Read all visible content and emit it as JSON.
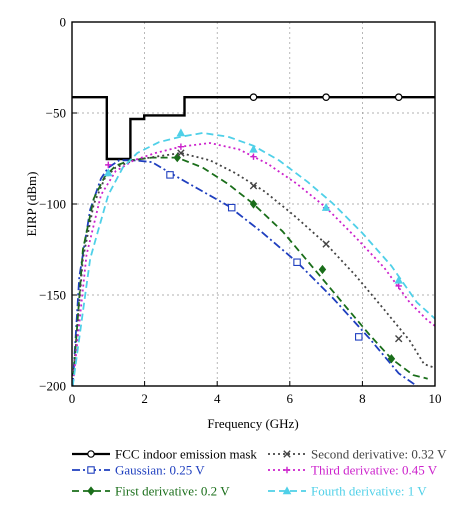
{
  "chart_data": {
    "type": "line",
    "xlabel": "Frequency (GHz)",
    "ylabel": "EIRP (dBm)",
    "xlim": [
      0,
      10
    ],
    "ylim": [
      -200,
      0
    ],
    "xticks": [
      0,
      2,
      4,
      6,
      8,
      10
    ],
    "yticks": [
      0,
      -50,
      -100,
      -150,
      -200
    ],
    "xtick_labels": [
      "0",
      "2",
      "4",
      "6",
      "8",
      "10"
    ],
    "ytick_labels": [
      "0",
      "−50",
      "−100",
      "−150",
      "−200"
    ],
    "grid": true,
    "legend_position": "below-plot",
    "series": [
      {
        "name": "FCC indoor emission mask",
        "color": "#000000",
        "dash": "solid",
        "marker": "circle",
        "x": [
          0,
          0.96,
          0.96,
          1.61,
          1.61,
          1.99,
          1.99,
          3.1,
          3.1,
          5,
          7,
          9,
          10
        ],
        "y": [
          -41.3,
          -41.3,
          -75.3,
          -75.3,
          -53.3,
          -53.3,
          -51.3,
          -51.3,
          -41.3,
          -41.3,
          -41.3,
          -41.3,
          -41.3
        ],
        "marker_x": [
          5,
          7,
          9
        ],
        "marker_y": [
          -41.3,
          -41.3,
          -41.3
        ]
      },
      {
        "name": "Gaussian: 0.25 V",
        "color": "#1f3fbf",
        "dash": "dashdot",
        "marker": "square",
        "x": [
          0.02,
          0.2,
          0.5,
          0.8,
          1.0,
          1.3,
          1.7,
          2.2,
          2.8,
          3.5,
          4.3,
          5.2,
          6.2,
          7.2,
          8.2,
          9.0,
          9.5
        ],
        "y": [
          -200,
          -140,
          -103,
          -86,
          -80,
          -76,
          -76,
          -77,
          -84,
          -92,
          -101,
          -115,
          -132,
          -152,
          -174,
          -193,
          -200
        ],
        "marker_x": [
          2.7,
          4.4,
          6.2,
          7.9
        ],
        "marker_y": [
          -84,
          -102,
          -132,
          -173
        ]
      },
      {
        "name": "First derivative: 0.2 V",
        "color": "#1a6e1a",
        "dash": "dashed",
        "marker": "diamond",
        "x": [
          0.02,
          0.3,
          0.6,
          0.9,
          1.2,
          1.6,
          2.2,
          2.9,
          3.6,
          4.3,
          5.0,
          5.8,
          6.6,
          7.4,
          8.2,
          8.8,
          9.4,
          9.8
        ],
        "y": [
          -200,
          -125,
          -97,
          -85,
          -79,
          -76,
          -74.5,
          -74.5,
          -80,
          -89,
          -100,
          -115,
          -134,
          -153,
          -172,
          -185,
          -194,
          -196
        ],
        "marker_x": [
          2.9,
          5.0,
          6.9,
          8.8
        ],
        "marker_y": [
          -74.5,
          -100,
          -136,
          -185
        ]
      },
      {
        "name": "Second derivative: 0.32 V",
        "color": "#444444",
        "dash": "dotted",
        "marker": "cross",
        "x": [
          0.02,
          0.3,
          0.6,
          0.9,
          1.2,
          1.7,
          2.3,
          3.0,
          3.8,
          4.5,
          5.3,
          6.1,
          7.0,
          7.8,
          8.6,
          9.3,
          9.7,
          10.0
        ],
        "y": [
          -200,
          -130,
          -100,
          -86,
          -80,
          -76,
          -74,
          -72,
          -76,
          -83,
          -93,
          -106,
          -122,
          -139,
          -158,
          -175,
          -188,
          -190
        ],
        "marker_x": [
          3.0,
          5.0,
          7.0,
          9.0
        ],
        "marker_y": [
          -72,
          -90,
          -122,
          -174
        ]
      },
      {
        "name": "Third derivative: 0.45 V",
        "color": "#cc22cc",
        "dash": "dotted",
        "marker": "plus",
        "x": [
          0.02,
          0.4,
          0.8,
          1.2,
          1.7,
          2.3,
          3.0,
          3.8,
          4.6,
          5.4,
          6.2,
          7.0,
          7.8,
          8.6,
          9.3,
          9.8,
          10.0
        ],
        "y": [
          -200,
          -128,
          -95,
          -82,
          -76,
          -72,
          -68.5,
          -66.5,
          -70,
          -78,
          -89,
          -102,
          -118,
          -135,
          -154,
          -164,
          -167
        ],
        "marker_x": [
          1.0,
          3.0,
          5.0,
          7.0,
          9.0
        ],
        "marker_y": [
          -78.5,
          -68.5,
          -74,
          -102,
          -145
        ]
      },
      {
        "name": "Fourth derivative: 1 V",
        "color": "#4fd0e8",
        "dash": "dashed",
        "marker": "triangle",
        "x": [
          0.02,
          0.5,
          1.0,
          1.4,
          1.8,
          2.4,
          3.0,
          3.6,
          4.3,
          5.0,
          5.7,
          6.5,
          7.2,
          8.0,
          8.8,
          9.5,
          10.0
        ],
        "y": [
          -200,
          -130,
          -95,
          -80,
          -72,
          -66,
          -63,
          -61,
          -63,
          -68,
          -76,
          -88,
          -100,
          -116,
          -134,
          -154,
          -163
        ],
        "marker_x": [
          1.0,
          3.0,
          5.0,
          7.0,
          9.0
        ],
        "marker_y": [
          -83,
          -61,
          -70,
          -102,
          -142
        ]
      }
    ]
  }
}
